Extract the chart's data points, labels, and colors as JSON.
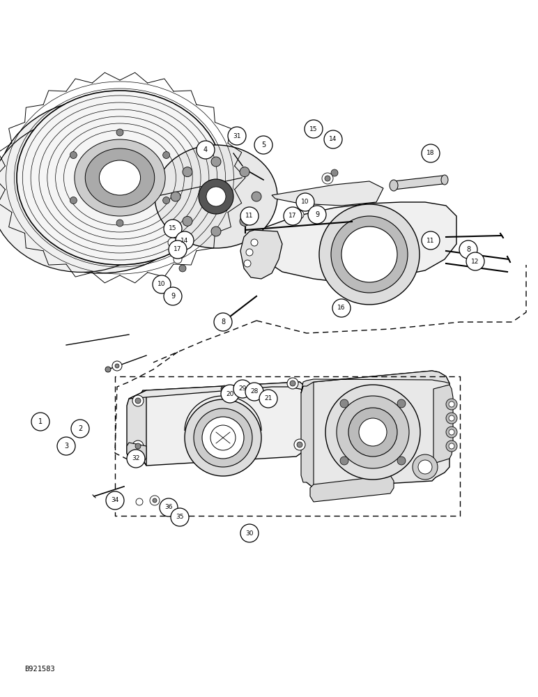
{
  "background_color": "#ffffff",
  "image_label": "B921583",
  "figsize": [
    7.72,
    10.0
  ],
  "dpi": 100,
  "part_labels_upper": [
    [
      "1",
      58,
      605
    ],
    [
      "3",
      95,
      640
    ],
    [
      "2",
      115,
      615
    ],
    [
      "4",
      295,
      215
    ],
    [
      "31",
      340,
      195
    ],
    [
      "5",
      378,
      208
    ],
    [
      "15",
      450,
      185
    ],
    [
      "14",
      478,
      200
    ],
    [
      "18",
      618,
      220
    ],
    [
      "10",
      438,
      290
    ],
    [
      "9",
      455,
      308
    ],
    [
      "17",
      420,
      310
    ],
    [
      "11",
      358,
      310
    ],
    [
      "11",
      618,
      345
    ],
    [
      "8",
      672,
      358
    ],
    [
      "12",
      682,
      375
    ],
    [
      "15",
      248,
      328
    ],
    [
      "14",
      265,
      345
    ],
    [
      "17",
      255,
      358
    ],
    [
      "10",
      232,
      408
    ],
    [
      "9",
      248,
      425
    ],
    [
      "16",
      490,
      442
    ],
    [
      "8",
      320,
      462
    ]
  ],
  "part_labels_lower": [
    [
      "20",
      330,
      565
    ],
    [
      "29",
      348,
      558
    ],
    [
      "28",
      365,
      562
    ],
    [
      "21",
      385,
      572
    ],
    [
      "32",
      195,
      658
    ],
    [
      "30",
      358,
      765
    ],
    [
      "34",
      165,
      718
    ],
    [
      "36",
      242,
      728
    ],
    [
      "35",
      258,
      742
    ]
  ]
}
